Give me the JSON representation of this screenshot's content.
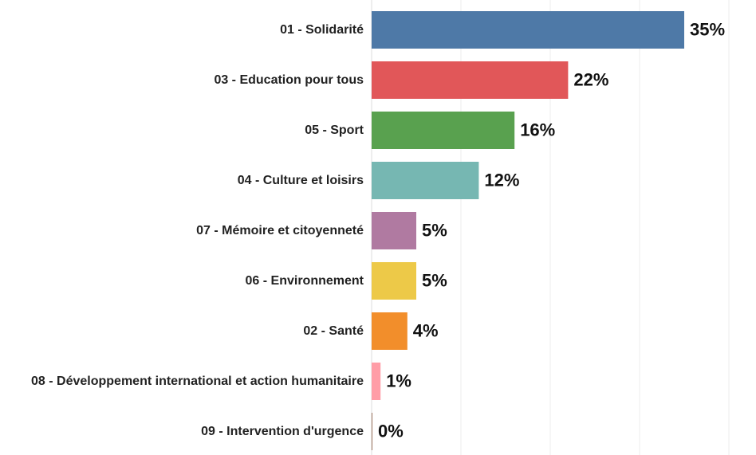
{
  "chart_data": {
    "type": "hbar",
    "categories": [
      "01 - Solidarité",
      "03 - Education pour tous",
      "05 - Sport",
      "04 - Culture et loisirs",
      "07 - Mémoire et citoyenneté",
      "06 - Environnement",
      "02 - Santé",
      "08 - Développement international et action humanitaire",
      "09 - Intervention d'urgence"
    ],
    "values": [
      35,
      22,
      16,
      12,
      5,
      5,
      4,
      1,
      0
    ],
    "value_labels": [
      "35%",
      "22%",
      "16%",
      "12%",
      "5%",
      "5%",
      "4%",
      "1%",
      "0%"
    ],
    "colors": [
      "#4e79a7",
      "#e15759",
      "#59a14f",
      "#76b7b2",
      "#b07aa1",
      "#edc948",
      "#f28e2b",
      "#ff9da7",
      "#9c755f"
    ],
    "xlim": [
      0,
      40
    ],
    "xticks": [
      0,
      10,
      20,
      30,
      40
    ],
    "grid": true
  }
}
